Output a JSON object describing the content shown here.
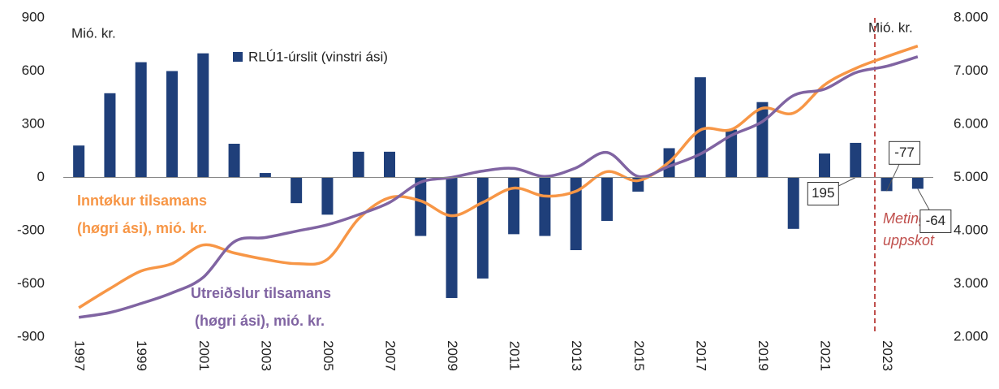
{
  "chart_data": {
    "type": "bar",
    "y_label": "Mió. kr.",
    "y2_label": "Mió. kr.",
    "categories": [
      "1997",
      null,
      "1999",
      null,
      "2001",
      null,
      "2003",
      null,
      "2005",
      null,
      "2007",
      null,
      "2009",
      null,
      "2011",
      null,
      "2013",
      null,
      "2015",
      null,
      "2017",
      null,
      "2019",
      null,
      "2021",
      null,
      "2023",
      null
    ],
    "series": [
      {
        "name": "RLÚ1-úrslit (vinstri ási)",
        "type": "bar",
        "color": "#1f3f7a",
        "values": [
          180,
          475,
          650,
          600,
          700,
          190,
          25,
          -145,
          -210,
          145,
          145,
          -330,
          -680,
          -570,
          -320,
          -330,
          -410,
          -245,
          -80,
          165,
          565,
          270,
          425,
          -290,
          135,
          195,
          -77,
          -64
        ],
        "value_labels": [
          null,
          null,
          null,
          null,
          null,
          null,
          null,
          null,
          null,
          null,
          null,
          null,
          null,
          null,
          null,
          null,
          null,
          null,
          null,
          null,
          null,
          null,
          null,
          null,
          null,
          "195",
          "-77",
          "-64"
        ]
      },
      {
        "type": "line",
        "axis": "y2",
        "color": "#f79646",
        "label": [
          "Inntøkur tilsamans",
          "(høgri ási), mió. kr."
        ],
        "values": [
          2550,
          2910,
          3240,
          3380,
          3730,
          3580,
          3460,
          3380,
          3460,
          4220,
          4620,
          4560,
          4280,
          4530,
          4800,
          4650,
          4740,
          5110,
          4940,
          5290,
          5890,
          5900,
          6300,
          6210,
          6740,
          7050,
          7270,
          7470
        ]
      },
      {
        "type": "line",
        "axis": "y2",
        "color": "#8064a2",
        "label": [
          "Utreiðslur tilsamans",
          "(høgri ási), mió. kr."
        ],
        "values": [
          2370,
          2460,
          2630,
          2830,
          3120,
          3790,
          3870,
          3990,
          4110,
          4300,
          4530,
          4910,
          5000,
          5120,
          5170,
          5020,
          5180,
          5470,
          5020,
          5210,
          5440,
          5790,
          6050,
          6540,
          6660,
          6970,
          7090,
          7270
        ]
      }
    ],
    "annotation": [
      "Meting og",
      "uppskot"
    ],
    "ylim": [
      -900,
      900
    ],
    "yticks": [
      -900,
      -600,
      -300,
      0,
      300,
      600,
      900
    ],
    "y2lim": [
      2000,
      8000
    ],
    "y2ticks": [
      {
        "value": 2000,
        "label": "2.000"
      },
      {
        "value": 3000,
        "label": "3.000"
      },
      {
        "value": 4000,
        "label": "4.000"
      },
      {
        "value": 5000,
        "label": "5.000"
      },
      {
        "value": 6000,
        "label": "6.000"
      },
      {
        "value": 7000,
        "label": "7.000"
      },
      {
        "value": 8000,
        "label": "8.000"
      }
    ]
  }
}
